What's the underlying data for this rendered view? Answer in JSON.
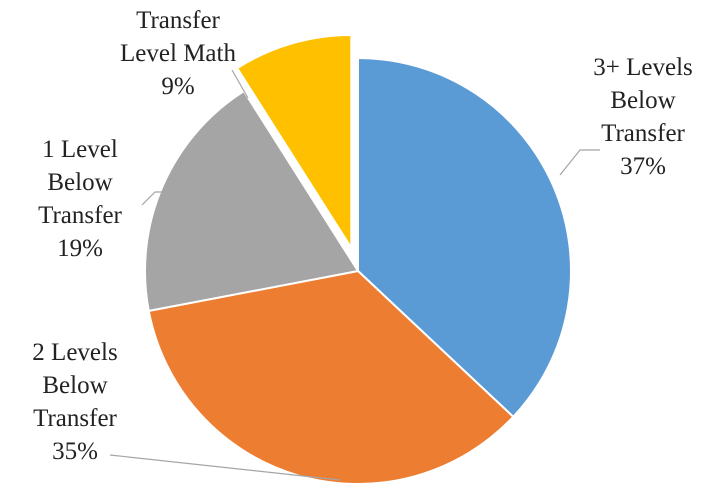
{
  "chart_data": {
    "type": "pie",
    "categories": [
      "3+ Levels Below Transfer",
      "2 Levels Below Transfer",
      "1 Level Below Transfer",
      "Transfer Level Math"
    ],
    "values": [
      37,
      35,
      19,
      9
    ],
    "value_labels": [
      "37%",
      "35%",
      "19%",
      "9%"
    ],
    "colors": [
      "#5b9bd5",
      "#ed7d31",
      "#a5a5a5",
      "#ffc000"
    ],
    "exploded": [
      false,
      false,
      false,
      true
    ]
  }
}
